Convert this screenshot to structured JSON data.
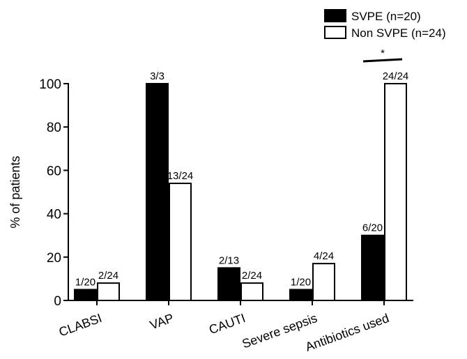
{
  "chart_data": {
    "type": "bar",
    "ylabel": "% of patients",
    "ylim": [
      0,
      100
    ],
    "yticks": [
      0,
      20,
      40,
      60,
      80,
      100
    ],
    "categories": [
      "CLABSI",
      "VAP",
      "CAUTI",
      "Severe sepsis",
      "Antibiotics used"
    ],
    "series": [
      {
        "name": "SVPE (n=20)",
        "fill": "#000000",
        "values": [
          5,
          100,
          15,
          5,
          30
        ],
        "labels": [
          "1/20",
          "3/3",
          "2/13",
          "1/20",
          "6/20"
        ]
      },
      {
        "name": "Non SVPE (n=24)",
        "fill": "#ffffff",
        "values": [
          8,
          54,
          8,
          17,
          100
        ],
        "labels": [
          "2/24",
          "13/24",
          "2/24",
          "4/24",
          "24/24"
        ]
      }
    ],
    "legend_position": "top-right",
    "significance": {
      "category": "Antibiotics used",
      "marker": "*"
    }
  }
}
